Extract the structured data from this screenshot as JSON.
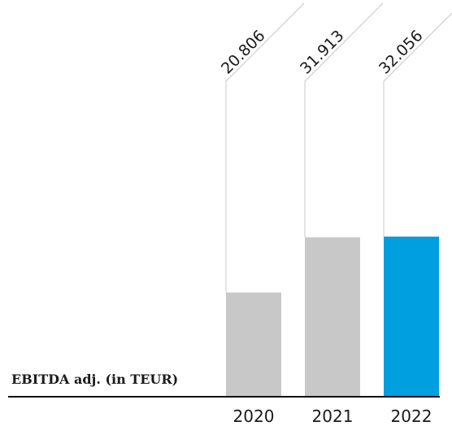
{
  "chart_data": {
    "type": "bar",
    "title": "EBITDA adj. (in TEUR)",
    "categories": [
      "2020",
      "2021",
      "2022"
    ],
    "values": [
      20806,
      31913,
      32056
    ],
    "value_labels": [
      "20.806",
      "31.913",
      "32.056"
    ],
    "colors": [
      "#c8c8c8",
      "#c8c8c8",
      "#009fdf"
    ]
  }
}
